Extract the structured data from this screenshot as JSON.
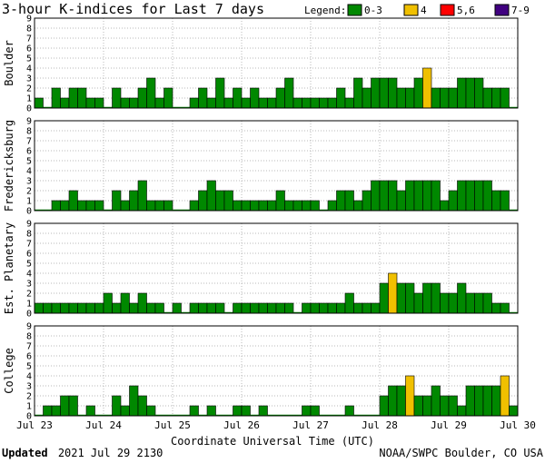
{
  "chart_data": {
    "type": "bar",
    "title": "3-hour K-indices for Last 7 days",
    "legend": {
      "label": "Legend:",
      "position": "top-right",
      "entries": [
        {
          "name": "0-3",
          "color": "#008800"
        },
        {
          "name": "4",
          "color": "#f0c000"
        },
        {
          "name": "5,6",
          "color": "#ff0000"
        },
        {
          "name": "7-9",
          "color": "#400080"
        }
      ]
    },
    "xlabel": "Coordinate Universal Time (UTC)",
    "x_ticks": [
      "Jul 23",
      "Jul 24",
      "Jul 25",
      "Jul 26",
      "Jul 27",
      "Jul 28",
      "Jul 29",
      "Jul 30"
    ],
    "y_ticks": [
      "0",
      "1",
      "2",
      "3",
      "4",
      "5",
      "6",
      "7",
      "8",
      "9"
    ],
    "ylim": [
      0,
      9
    ],
    "grid": true,
    "series": [
      {
        "name": "Boulder",
        "values": [
          1,
          0,
          2,
          1,
          2,
          2,
          1,
          1,
          0,
          2,
          1,
          1,
          2,
          3,
          1,
          2,
          0,
          0,
          1,
          2,
          1,
          3,
          1,
          2,
          1,
          2,
          1,
          1,
          2,
          3,
          1,
          1,
          1,
          1,
          1,
          2,
          1,
          3,
          2,
          3,
          3,
          3,
          2,
          2,
          3,
          4,
          2,
          2,
          2,
          3,
          3,
          3,
          2,
          2,
          2,
          0
        ]
      },
      {
        "name": "Fredericksburg",
        "values": [
          0,
          0,
          1,
          1,
          2,
          1,
          1,
          1,
          0,
          2,
          1,
          2,
          3,
          1,
          1,
          1,
          0,
          0,
          1,
          2,
          3,
          2,
          2,
          1,
          1,
          1,
          1,
          1,
          2,
          1,
          1,
          1,
          1,
          0,
          1,
          2,
          2,
          1,
          2,
          3,
          3,
          3,
          2,
          3,
          3,
          3,
          3,
          1,
          2,
          3,
          3,
          3,
          3,
          2,
          2,
          0
        ]
      },
      {
        "name": "Est. Planetary",
        "values": [
          1,
          1,
          1,
          1,
          1,
          1,
          1,
          1,
          2,
          1,
          2,
          1,
          2,
          1,
          1,
          0,
          1,
          0,
          1,
          1,
          1,
          1,
          0,
          1,
          1,
          1,
          1,
          1,
          1,
          1,
          0,
          1,
          1,
          1,
          1,
          1,
          2,
          1,
          1,
          1,
          3,
          4,
          3,
          3,
          2,
          3,
          3,
          2,
          2,
          3,
          2,
          2,
          2,
          1,
          1,
          0
        ]
      },
      {
        "name": "College",
        "values": [
          0,
          1,
          1,
          2,
          2,
          0,
          1,
          0,
          0,
          2,
          1,
          3,
          2,
          1,
          0,
          0,
          0,
          0,
          1,
          0,
          1,
          0,
          0,
          1,
          1,
          0,
          1,
          0,
          0,
          0,
          0,
          1,
          1,
          0,
          0,
          0,
          1,
          0,
          0,
          0,
          2,
          3,
          3,
          4,
          2,
          2,
          3,
          2,
          2,
          1,
          3,
          3,
          3,
          3,
          4,
          1
        ]
      }
    ]
  },
  "footer": {
    "updated_label": "Updated",
    "updated_value": "2021 Jul 29 2130",
    "source": "NOAA/SWPC Boulder, CO USA"
  }
}
